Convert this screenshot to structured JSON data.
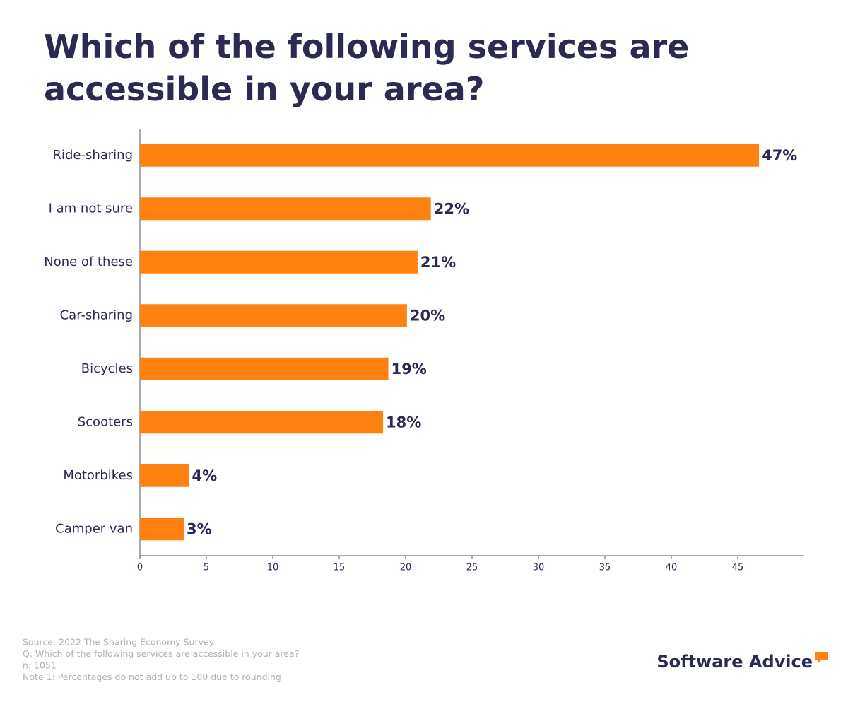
{
  "chart_data": {
    "type": "hbar",
    "title": "Which of the following services are accessible in your area?",
    "categories": [
      "Ride-sharing",
      "I am not sure",
      "None of these",
      "Car-sharing",
      "Bicycles",
      "Scooters",
      "Motorbikes",
      "Camper van"
    ],
    "values": [
      46.6,
      21.9,
      20.9,
      20.1,
      18.7,
      18.3,
      3.7,
      3.3
    ],
    "value_labels": [
      "47%",
      "22%",
      "21%",
      "20%",
      "19%",
      "18%",
      "4%",
      "3%"
    ],
    "color": "#ff8210",
    "xlim": [
      0,
      50
    ],
    "xticks": [
      0,
      5,
      10,
      15,
      20,
      25,
      30,
      35,
      40,
      45
    ],
    "grid": false
  },
  "footer": {
    "notes": [
      "Source: 2022 The Sharing Economy Survey",
      "Q: Which of the following services are accessible in your area?",
      "n: 1051",
      "Note 1: Percentages do not add up to 100 due to rounding"
    ],
    "logo": "Software Advice"
  }
}
